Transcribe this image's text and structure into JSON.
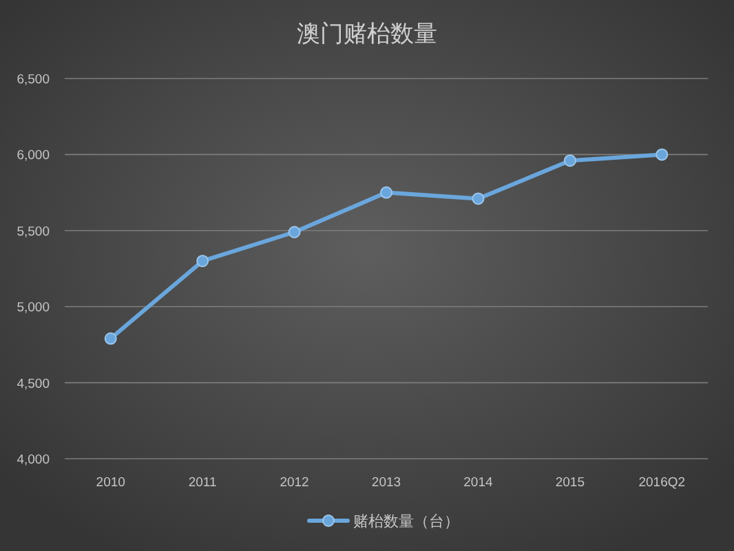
{
  "chart_data": {
    "type": "line",
    "title": "澳门赌枱数量",
    "categories": [
      "2010",
      "2011",
      "2012",
      "2013",
      "2014",
      "2015",
      "2016Q2"
    ],
    "series": [
      {
        "name": "赌枱数量（台）",
        "color": "#6aa6dc",
        "values": [
          4790,
          5300,
          5490,
          5750,
          5710,
          5960,
          6000
        ]
      }
    ],
    "ylim": [
      4000,
      6500
    ],
    "yticks": [
      {
        "value": 4000,
        "label": "4,000"
      },
      {
        "value": 4500,
        "label": "4,500"
      },
      {
        "value": 5000,
        "label": "5,000"
      },
      {
        "value": 5500,
        "label": "5,500"
      },
      {
        "value": 6000,
        "label": "6,000"
      },
      {
        "value": 6500,
        "label": "6,500"
      }
    ],
    "grid": "y",
    "legend": "bottom",
    "marker": "circle",
    "line_style": "solid"
  }
}
